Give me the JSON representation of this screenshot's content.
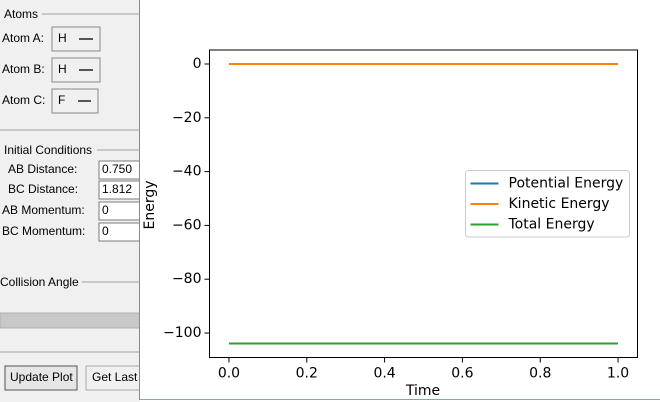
{
  "panel": {
    "atoms": {
      "title": "Atoms",
      "rows": [
        {
          "label": "Atom A:",
          "value": "H"
        },
        {
          "label": "Atom B:",
          "value": "H"
        },
        {
          "label": "Atom C:",
          "value": "F"
        }
      ]
    },
    "initial_conditions": {
      "title": "Initial Conditions",
      "rows": [
        {
          "label": "AB Distance:",
          "value": "0.750"
        },
        {
          "label": "BC Distance:",
          "value": "1.812"
        },
        {
          "label": "AB Momentum:",
          "value": "0"
        },
        {
          "label": "BC Momentum:",
          "value": "0"
        }
      ]
    },
    "collision_angle": {
      "title": "Collision Angle"
    },
    "buttons": [
      "Update Plot",
      "Get Last"
    ]
  },
  "chart_data": {
    "type": "line",
    "x_label": "Time",
    "y_label": "Energy",
    "x": [
      0,
      1
    ],
    "series": [
      {
        "name": "Potential Energy",
        "color": "#1f77b4",
        "values": [
          -103.9,
          -103.9
        ]
      },
      {
        "name": "Kinetic Energy",
        "color": "#ff7f0e",
        "values": [
          0,
          0
        ]
      },
      {
        "name": "Total Energy",
        "color": "#2ca02c",
        "values": [
          -103.9,
          -103.9
        ]
      }
    ],
    "xlim": [
      -0.05,
      1.05
    ],
    "xticks": [
      {
        "value": 0,
        "label": "0.0"
      },
      {
        "value": 0.2,
        "label": "0.2"
      },
      {
        "value": 0.4,
        "label": "0.4"
      },
      {
        "value": 0.6,
        "label": "0.6"
      },
      {
        "value": 0.8,
        "label": "0.8"
      },
      {
        "value": 1,
        "label": "1.0"
      }
    ],
    "ylim": [
      -109.1,
      5.2
    ],
    "yticks": [
      {
        "value": 0,
        "label": "0"
      },
      {
        "value": -20,
        "label": "−20"
      },
      {
        "value": -40,
        "label": "−40"
      },
      {
        "value": -60,
        "label": "−60"
      },
      {
        "value": -80,
        "label": "−80"
      },
      {
        "value": -100,
        "label": "−100"
      }
    ],
    "legend": "center right"
  }
}
